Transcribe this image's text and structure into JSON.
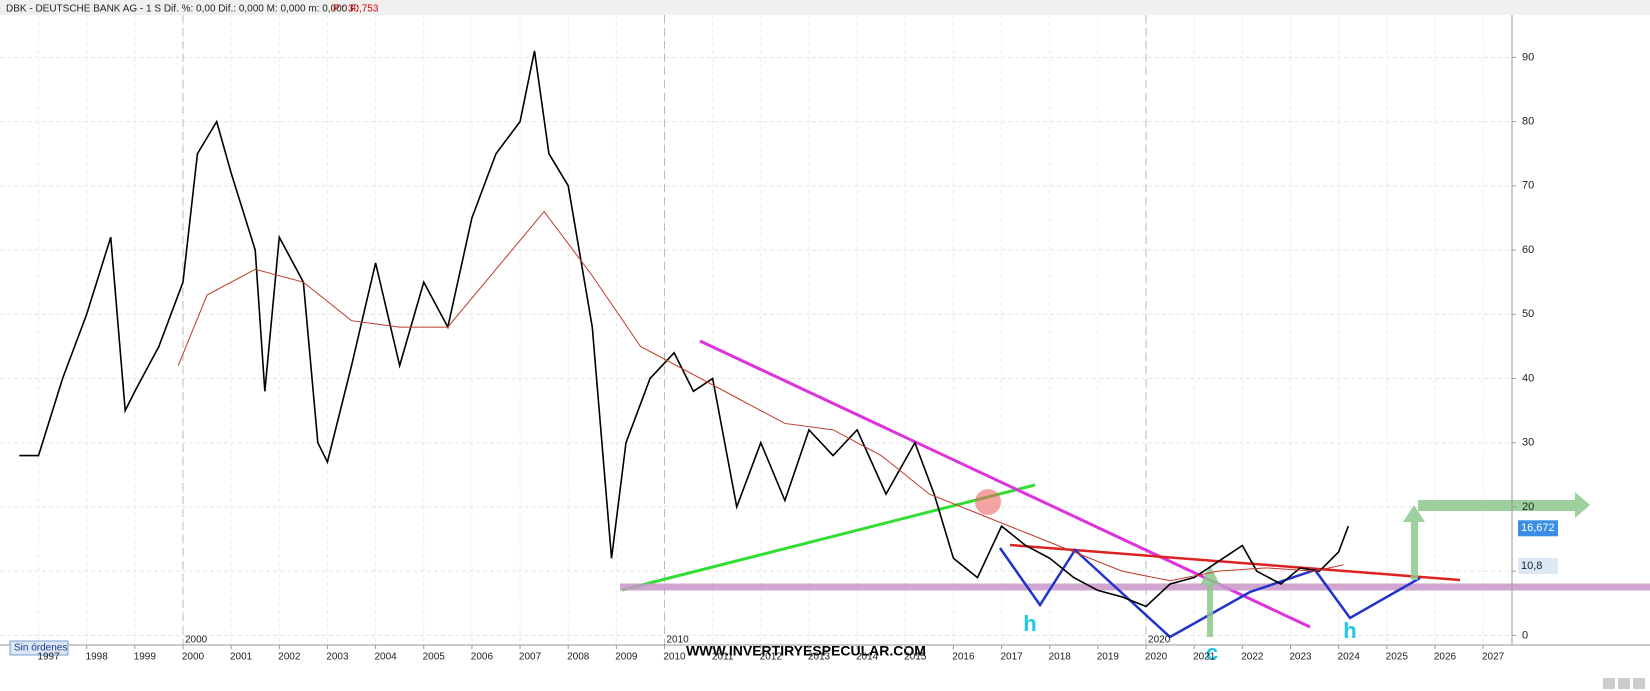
{
  "chart_data": {
    "type": "line",
    "header": "DBK - DEUTSCHE BANK AG - 1 S  Dif. %: 0,00  Dif.: 0,000  M: 0,000  m: 0,000  F:",
    "last_price": "P : 30,753",
    "xlim": [
      1996.2,
      2027.6
    ],
    "ylim": [
      -1.5,
      96.6
    ],
    "xticks": [
      1997,
      1998,
      1999,
      2000,
      2001,
      2002,
      2003,
      2004,
      2005,
      2006,
      2007,
      2008,
      2009,
      2010,
      2011,
      2012,
      2013,
      2014,
      2015,
      2016,
      2017,
      2018,
      2019,
      2020,
      2021,
      2022,
      2023,
      2024,
      2025,
      2026,
      2027
    ],
    "decade_ticks": [
      2000,
      2010,
      2020
    ],
    "yticks": [
      0,
      10,
      20,
      30,
      40,
      50,
      60,
      70,
      80,
      90
    ],
    "grid": true,
    "series": [
      {
        "name": "DBK",
        "color": "#000000",
        "x": [
          1996.6,
          1997,
          1997.5,
          1998,
          1998.5,
          1998.8,
          1999,
          1999.5,
          2000,
          2000.3,
          2000.7,
          2001,
          2001.5,
          2001.7,
          2002,
          2002.5,
          2002.8,
          2003,
          2003.5,
          2004,
          2004.5,
          2005,
          2005.5,
          2006,
          2006.5,
          2007,
          2007.3,
          2007.6,
          2008,
          2008.5,
          2008.9,
          2009.2,
          2009.7,
          2010.2,
          2010.6,
          2011,
          2011.5,
          2012,
          2012.5,
          2013,
          2013.5,
          2014,
          2014.6,
          2015.2,
          2015.6,
          2016,
          2016.5,
          2017,
          2017.5,
          2018,
          2018.5,
          2019,
          2019.5,
          2020,
          2020.5,
          2021,
          2021.6,
          2022,
          2022.3,
          2022.8,
          2023.2,
          2023.6,
          2024,
          2024.2
        ],
        "values": [
          28,
          28,
          40,
          50,
          62,
          35,
          38,
          45,
          55,
          75,
          80,
          72,
          60,
          38,
          62,
          55,
          30,
          27,
          42,
          58,
          42,
          55,
          48,
          65,
          75,
          80,
          91,
          75,
          70,
          48,
          12,
          30,
          40,
          44,
          38,
          40,
          20,
          30,
          21,
          32,
          28,
          32,
          22,
          30,
          22,
          12,
          9,
          17,
          14,
          12,
          9,
          7,
          6,
          4.5,
          8,
          9,
          12,
          14,
          10,
          8,
          10.5,
          10,
          13,
          17
        ]
      },
      {
        "name": "MA",
        "color": "#c0392b",
        "x": [
          1999.9,
          2000.5,
          2001.5,
          2002.5,
          2003.5,
          2004.5,
          2005.5,
          2006.5,
          2007.5,
          2008.5,
          2009.5,
          2010.5,
          2011.5,
          2012.5,
          2013.5,
          2014.5,
          2015.5,
          2016.5,
          2017.5,
          2018.5,
          2019.5,
          2020.5,
          2021.5,
          2022.5,
          2023.5,
          2024.1
        ],
        "values": [
          42,
          53,
          57,
          55,
          49,
          48,
          48,
          57,
          66,
          56,
          45,
          41,
          37,
          33,
          32,
          28,
          22,
          19,
          16,
          13,
          10,
          8.5,
          10,
          10.5,
          10,
          11
        ]
      }
    ],
    "price_tags": [
      {
        "value": 16.672,
        "label": "16,672"
      },
      {
        "value": 10.8,
        "label": "10,8"
      }
    ],
    "annotations": [
      "h",
      "c",
      "h"
    ],
    "status": "Sin órdenes",
    "watermark": "WWW.INVERTIRYESPECULAR.COM"
  }
}
